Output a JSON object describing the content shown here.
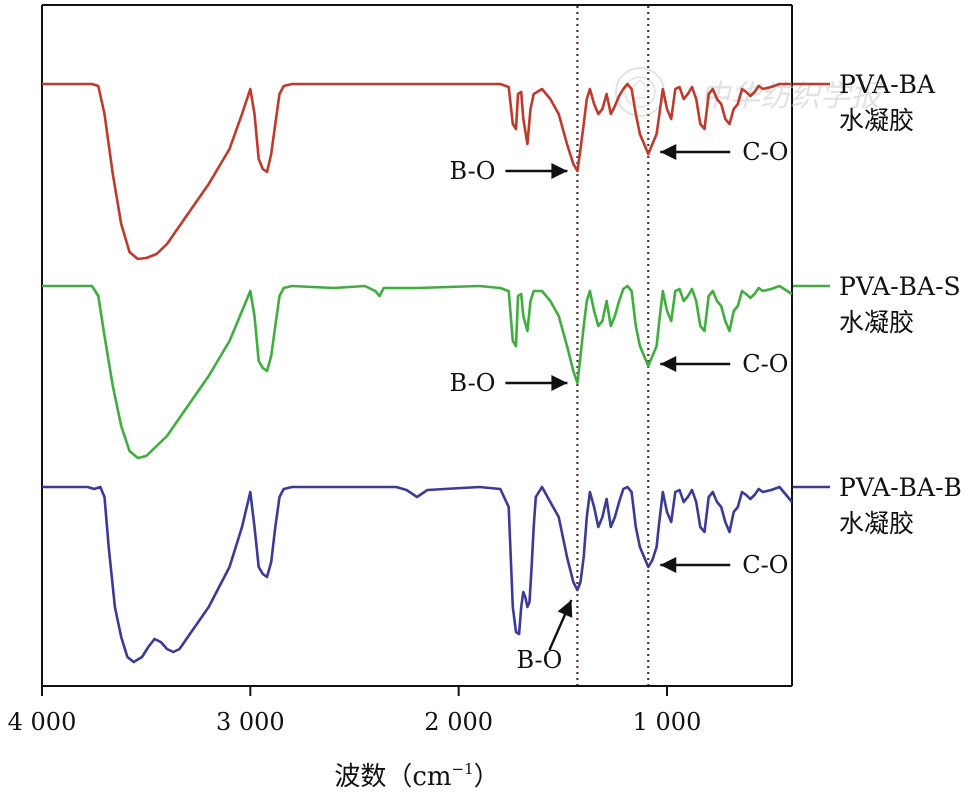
{
  "chart_data": {
    "type": "line",
    "title": "",
    "xlabel_main": "波数（cm",
    "xlabel_sup": "−1",
    "xlabel_close": "）",
    "ylabel": "",
    "xlim": [
      4000,
      400
    ],
    "x_ticks": [
      4000,
      3000,
      2000,
      1000
    ],
    "x_tick_labels": [
      "4 000",
      "3 000",
      "2 000",
      "1 000"
    ],
    "grid": false,
    "reference_lines": [
      1430,
      1090
    ],
    "series": [
      {
        "name": "PVA-BA",
        "suffix": "水凝胶",
        "color": "#c0392b",
        "baseline": 0,
        "points": [
          [
            4000,
            0
          ],
          [
            3760,
            0
          ],
          [
            3730,
            2
          ],
          [
            3700,
            30
          ],
          [
            3660,
            90
          ],
          [
            3620,
            140
          ],
          [
            3580,
            168
          ],
          [
            3540,
            175
          ],
          [
            3500,
            174
          ],
          [
            3450,
            170
          ],
          [
            3400,
            160
          ],
          [
            3300,
            130
          ],
          [
            3200,
            100
          ],
          [
            3100,
            65
          ],
          [
            3040,
            30
          ],
          [
            3000,
            5
          ],
          [
            2980,
            30
          ],
          [
            2960,
            75
          ],
          [
            2940,
            85
          ],
          [
            2920,
            88
          ],
          [
            2900,
            70
          ],
          [
            2880,
            40
          ],
          [
            2860,
            10
          ],
          [
            2840,
            2
          ],
          [
            2800,
            0
          ],
          [
            2200,
            0
          ],
          [
            1800,
            0
          ],
          [
            1760,
            3
          ],
          [
            1740,
            40
          ],
          [
            1725,
            45
          ],
          [
            1715,
            10
          ],
          [
            1700,
            8
          ],
          [
            1690,
            35
          ],
          [
            1670,
            60
          ],
          [
            1655,
            25
          ],
          [
            1640,
            10
          ],
          [
            1600,
            5
          ],
          [
            1560,
            15
          ],
          [
            1520,
            30
          ],
          [
            1480,
            60
          ],
          [
            1450,
            80
          ],
          [
            1430,
            87
          ],
          [
            1415,
            65
          ],
          [
            1400,
            40
          ],
          [
            1385,
            15
          ],
          [
            1370,
            5
          ],
          [
            1350,
            20
          ],
          [
            1330,
            30
          ],
          [
            1310,
            25
          ],
          [
            1290,
            10
          ],
          [
            1270,
            30
          ],
          [
            1250,
            22
          ],
          [
            1230,
            12
          ],
          [
            1210,
            5
          ],
          [
            1190,
            0
          ],
          [
            1170,
            5
          ],
          [
            1150,
            30
          ],
          [
            1130,
            50
          ],
          [
            1110,
            60
          ],
          [
            1090,
            70
          ],
          [
            1070,
            60
          ],
          [
            1050,
            50
          ],
          [
            1040,
            35
          ],
          [
            1020,
            5
          ],
          [
            1000,
            25
          ],
          [
            980,
            35
          ],
          [
            960,
            5
          ],
          [
            940,
            3
          ],
          [
            920,
            15
          ],
          [
            900,
            10
          ],
          [
            880,
            3
          ],
          [
            860,
            15
          ],
          [
            840,
            40
          ],
          [
            820,
            45
          ],
          [
            800,
            10
          ],
          [
            780,
            5
          ],
          [
            760,
            15
          ],
          [
            740,
            20
          ],
          [
            720,
            35
          ],
          [
            700,
            40
          ],
          [
            680,
            25
          ],
          [
            660,
            20
          ],
          [
            640,
            5
          ],
          [
            620,
            8
          ],
          [
            600,
            12
          ],
          [
            580,
            8
          ],
          [
            560,
            2
          ],
          [
            540,
            5
          ],
          [
            500,
            3
          ],
          [
            460,
            0
          ],
          [
            400,
            0
          ]
        ]
      },
      {
        "name": "PVA-BA-S",
        "suffix": "水凝胶",
        "color": "#3fae3f",
        "baseline": 0,
        "points": [
          [
            4000,
            0
          ],
          [
            3760,
            0
          ],
          [
            3730,
            10
          ],
          [
            3700,
            50
          ],
          [
            3660,
            100
          ],
          [
            3620,
            140
          ],
          [
            3580,
            165
          ],
          [
            3540,
            172
          ],
          [
            3500,
            170
          ],
          [
            3450,
            160
          ],
          [
            3400,
            150
          ],
          [
            3300,
            120
          ],
          [
            3200,
            90
          ],
          [
            3100,
            55
          ],
          [
            3040,
            25
          ],
          [
            3000,
            5
          ],
          [
            2980,
            30
          ],
          [
            2960,
            75
          ],
          [
            2940,
            82
          ],
          [
            2920,
            85
          ],
          [
            2900,
            70
          ],
          [
            2880,
            40
          ],
          [
            2860,
            10
          ],
          [
            2840,
            2
          ],
          [
            2800,
            0
          ],
          [
            2600,
            2
          ],
          [
            2450,
            0
          ],
          [
            2400,
            5
          ],
          [
            2380,
            10
          ],
          [
            2360,
            2
          ],
          [
            2200,
            2
          ],
          [
            1900,
            0
          ],
          [
            1800,
            2
          ],
          [
            1760,
            5
          ],
          [
            1740,
            55
          ],
          [
            1725,
            60
          ],
          [
            1715,
            10
          ],
          [
            1700,
            8
          ],
          [
            1690,
            30
          ],
          [
            1670,
            45
          ],
          [
            1655,
            15
          ],
          [
            1640,
            5
          ],
          [
            1600,
            5
          ],
          [
            1560,
            15
          ],
          [
            1520,
            30
          ],
          [
            1480,
            60
          ],
          [
            1450,
            85
          ],
          [
            1430,
            97
          ],
          [
            1415,
            70
          ],
          [
            1400,
            40
          ],
          [
            1385,
            15
          ],
          [
            1370,
            5
          ],
          [
            1350,
            25
          ],
          [
            1330,
            40
          ],
          [
            1310,
            35
          ],
          [
            1290,
            15
          ],
          [
            1270,
            40
          ],
          [
            1250,
            30
          ],
          [
            1230,
            15
          ],
          [
            1210,
            3
          ],
          [
            1190,
            0
          ],
          [
            1170,
            5
          ],
          [
            1150,
            40
          ],
          [
            1130,
            60
          ],
          [
            1110,
            70
          ],
          [
            1090,
            80
          ],
          [
            1070,
            70
          ],
          [
            1050,
            60
          ],
          [
            1040,
            40
          ],
          [
            1020,
            5
          ],
          [
            1000,
            25
          ],
          [
            980,
            35
          ],
          [
            960,
            5
          ],
          [
            940,
            3
          ],
          [
            920,
            15
          ],
          [
            900,
            10
          ],
          [
            880,
            3
          ],
          [
            860,
            15
          ],
          [
            840,
            40
          ],
          [
            820,
            45
          ],
          [
            800,
            10
          ],
          [
            780,
            5
          ],
          [
            760,
            15
          ],
          [
            740,
            20
          ],
          [
            720,
            35
          ],
          [
            700,
            45
          ],
          [
            680,
            25
          ],
          [
            660,
            20
          ],
          [
            640,
            5
          ],
          [
            620,
            8
          ],
          [
            600,
            12
          ],
          [
            580,
            8
          ],
          [
            560,
            2
          ],
          [
            540,
            5
          ],
          [
            500,
            3
          ],
          [
            460,
            0
          ],
          [
            400,
            8
          ]
        ]
      },
      {
        "name": "PVA-BA-B",
        "suffix": "水凝胶",
        "color": "#3a3a98",
        "baseline": 0,
        "points": [
          [
            4000,
            0
          ],
          [
            3780,
            0
          ],
          [
            3750,
            2
          ],
          [
            3720,
            0
          ],
          [
            3700,
            10
          ],
          [
            3680,
            60
          ],
          [
            3650,
            120
          ],
          [
            3620,
            150
          ],
          [
            3590,
            170
          ],
          [
            3560,
            175
          ],
          [
            3520,
            170
          ],
          [
            3490,
            160
          ],
          [
            3460,
            152
          ],
          [
            3430,
            155
          ],
          [
            3400,
            162
          ],
          [
            3370,
            165
          ],
          [
            3340,
            162
          ],
          [
            3300,
            150
          ],
          [
            3200,
            120
          ],
          [
            3100,
            80
          ],
          [
            3040,
            40
          ],
          [
            3000,
            5
          ],
          [
            2980,
            40
          ],
          [
            2960,
            80
          ],
          [
            2940,
            87
          ],
          [
            2920,
            90
          ],
          [
            2900,
            75
          ],
          [
            2880,
            40
          ],
          [
            2860,
            10
          ],
          [
            2840,
            2
          ],
          [
            2800,
            0
          ],
          [
            2300,
            0
          ],
          [
            2250,
            3
          ],
          [
            2200,
            10
          ],
          [
            2150,
            3
          ],
          [
            1900,
            0
          ],
          [
            1800,
            2
          ],
          [
            1760,
            20
          ],
          [
            1740,
            120
          ],
          [
            1725,
            145
          ],
          [
            1710,
            147
          ],
          [
            1700,
            120
          ],
          [
            1690,
            105
          ],
          [
            1680,
            110
          ],
          [
            1670,
            120
          ],
          [
            1660,
            115
          ],
          [
            1650,
            80
          ],
          [
            1640,
            40
          ],
          [
            1630,
            10
          ],
          [
            1600,
            0
          ],
          [
            1560,
            15
          ],
          [
            1520,
            30
          ],
          [
            1480,
            70
          ],
          [
            1450,
            95
          ],
          [
            1430,
            103
          ],
          [
            1415,
            95
          ],
          [
            1400,
            70
          ],
          [
            1385,
            30
          ],
          [
            1370,
            5
          ],
          [
            1350,
            20
          ],
          [
            1330,
            40
          ],
          [
            1310,
            30
          ],
          [
            1290,
            12
          ],
          [
            1270,
            40
          ],
          [
            1250,
            30
          ],
          [
            1230,
            15
          ],
          [
            1210,
            2
          ],
          [
            1190,
            0
          ],
          [
            1170,
            5
          ],
          [
            1150,
            40
          ],
          [
            1130,
            60
          ],
          [
            1110,
            70
          ],
          [
            1090,
            80
          ],
          [
            1070,
            73
          ],
          [
            1050,
            60
          ],
          [
            1040,
            40
          ],
          [
            1020,
            5
          ],
          [
            1000,
            25
          ],
          [
            980,
            35
          ],
          [
            960,
            5
          ],
          [
            940,
            3
          ],
          [
            920,
            15
          ],
          [
            900,
            10
          ],
          [
            880,
            3
          ],
          [
            860,
            15
          ],
          [
            840,
            40
          ],
          [
            820,
            45
          ],
          [
            800,
            10
          ],
          [
            780,
            5
          ],
          [
            760,
            15
          ],
          [
            740,
            20
          ],
          [
            720,
            35
          ],
          [
            700,
            45
          ],
          [
            680,
            25
          ],
          [
            660,
            20
          ],
          [
            640,
            5
          ],
          [
            620,
            8
          ],
          [
            600,
            12
          ],
          [
            580,
            8
          ],
          [
            560,
            2
          ],
          [
            540,
            5
          ],
          [
            500,
            3
          ],
          [
            460,
            0
          ],
          [
            400,
            15
          ]
        ]
      }
    ],
    "annotations": [
      {
        "series": 0,
        "label": "B-O",
        "x": 1430,
        "from": "left"
      },
      {
        "series": 0,
        "label": "C-O",
        "x": 1090,
        "from": "right"
      },
      {
        "series": 1,
        "label": "B-O",
        "x": 1430,
        "from": "left"
      },
      {
        "series": 1,
        "label": "C-O",
        "x": 1090,
        "from": "right"
      },
      {
        "series": 2,
        "label": "B-O",
        "x": 1430,
        "from": "below"
      },
      {
        "series": 2,
        "label": "C-O",
        "x": 1090,
        "from": "right"
      }
    ],
    "watermark": "中华纺织学报"
  }
}
